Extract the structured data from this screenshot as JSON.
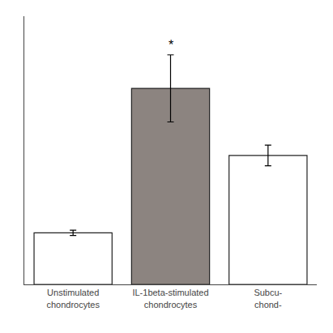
{
  "chart_data": {
    "type": "bar",
    "categories": [
      "Unstimulated\nchondrocytes",
      "IL-1beta-stimulated\nchondrocytes",
      "Subcu-\nchond-"
    ],
    "values": [
      1.0,
      3.8,
      2.5
    ],
    "errors": [
      0.05,
      0.65,
      0.2
    ],
    "colors": [
      "white",
      "#8c8480",
      "white"
    ],
    "ylim": [
      0,
      5.2
    ],
    "yticks": [],
    "tick_labels": "x",
    "grid": false,
    "annotations": [
      {
        "text": "*",
        "category": "IL-1beta-stimulated\nchondrocytes"
      }
    ]
  }
}
